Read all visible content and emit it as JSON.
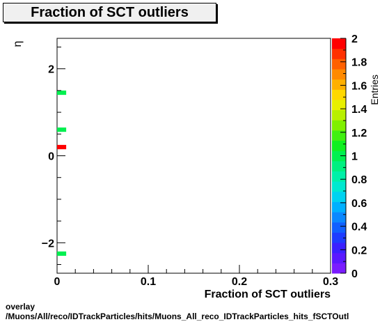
{
  "chart_data": {
    "type": "heatmap",
    "title": "Fraction of SCT outliers",
    "xlabel": "Fraction of SCT outliers",
    "ylabel": "η",
    "zlabel": "Entries",
    "xlim": [
      0,
      0.3
    ],
    "ylim": [
      -2.7,
      2.7
    ],
    "zlim": [
      0,
      2
    ],
    "x_ticks": [
      "0",
      "0.1",
      "0.2",
      "0.3"
    ],
    "y_ticks": [
      "−2",
      "0",
      "2"
    ],
    "z_ticks": [
      "0",
      "0.2",
      "0.4",
      "0.6",
      "0.8",
      "1",
      "1.2",
      "1.4",
      "1.6",
      "1.8",
      "2"
    ],
    "cells": [
      {
        "x0": 0.0,
        "x1": 0.01,
        "y0": 1.4,
        "y1": 1.5,
        "value": 1
      },
      {
        "x0": 0.0,
        "x1": 0.01,
        "y0": 0.55,
        "y1": 0.65,
        "value": 1
      },
      {
        "x0": 0.0,
        "x1": 0.01,
        "y0": 0.15,
        "y1": 0.25,
        "value": 2
      },
      {
        "x0": 0.0,
        "x1": 0.01,
        "y0": -2.3,
        "y1": -2.2,
        "value": 1
      }
    ],
    "palette": [
      "#7a1cff",
      "#5a18ff",
      "#3a20ff",
      "#1e3cff",
      "#1060ff",
      "#0a88ff",
      "#00b0ff",
      "#00d2f0",
      "#00e8d0",
      "#00f0a8",
      "#00f080",
      "#00f050",
      "#10f020",
      "#40f010",
      "#80f000",
      "#b8f000",
      "#e8f000",
      "#ffd800",
      "#ffb000",
      "#ff8a00",
      "#ff6000",
      "#ff3000",
      "#ff0000"
    ]
  },
  "footer": {
    "line1": "overlay",
    "line2": "/Muons/All/reco/IDTrackParticles/hits/Muons_All_reco_IDTrackParticles_hits_fSCTOutl"
  }
}
